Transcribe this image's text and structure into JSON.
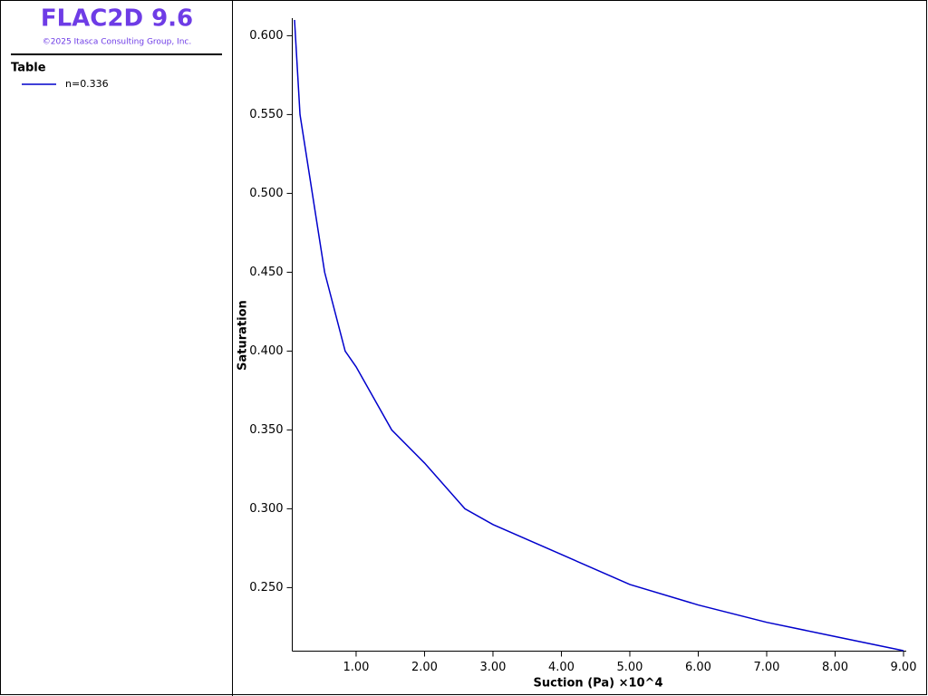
{
  "header": {
    "title": "FLAC2D 9.6",
    "copyright": "©2025 Itasca Consulting Group, Inc."
  },
  "chart_data": {
    "type": "line",
    "legend_title": "Table",
    "x_label": "Suction (Pa) ×10^4",
    "y_label": "Saturation",
    "x": [
      0.1,
      0.18,
      0.36,
      0.54,
      0.84,
      1.0,
      1.52,
      2.0,
      2.59,
      3.0,
      4.0,
      5.0,
      6.0,
      7.0,
      8.0,
      9.0
    ],
    "series": [
      {
        "name": "n=0.336",
        "color": "#0000cc",
        "values": [
          0.61,
          0.55,
          0.5,
          0.45,
          0.4,
          0.39,
          0.35,
          0.329,
          0.3,
          0.29,
          0.271,
          0.252,
          0.239,
          0.228,
          0.219,
          0.21
        ]
      }
    ],
    "xlim": [
      0.1,
      9.0
    ],
    "ylim": [
      0.21,
      0.61
    ],
    "xticks": [
      {
        "value": 1,
        "label": "1.00"
      },
      {
        "value": 2,
        "label": "2.00"
      },
      {
        "value": 3,
        "label": "3.00"
      },
      {
        "value": 4,
        "label": "4.00"
      },
      {
        "value": 5,
        "label": "5.00"
      },
      {
        "value": 6,
        "label": "6.00"
      },
      {
        "value": 7,
        "label": "7.00"
      },
      {
        "value": 8,
        "label": "8.00"
      },
      {
        "value": 9,
        "label": "9.00"
      }
    ],
    "yticks": [
      {
        "value": 0.25,
        "label": "0.250"
      },
      {
        "value": 0.3,
        "label": "0.300"
      },
      {
        "value": 0.35,
        "label": "0.350"
      },
      {
        "value": 0.4,
        "label": "0.400"
      },
      {
        "value": 0.45,
        "label": "0.450"
      },
      {
        "value": 0.5,
        "label": "0.500"
      },
      {
        "value": 0.55,
        "label": "0.550"
      },
      {
        "value": 0.6,
        "label": "0.600"
      }
    ]
  }
}
